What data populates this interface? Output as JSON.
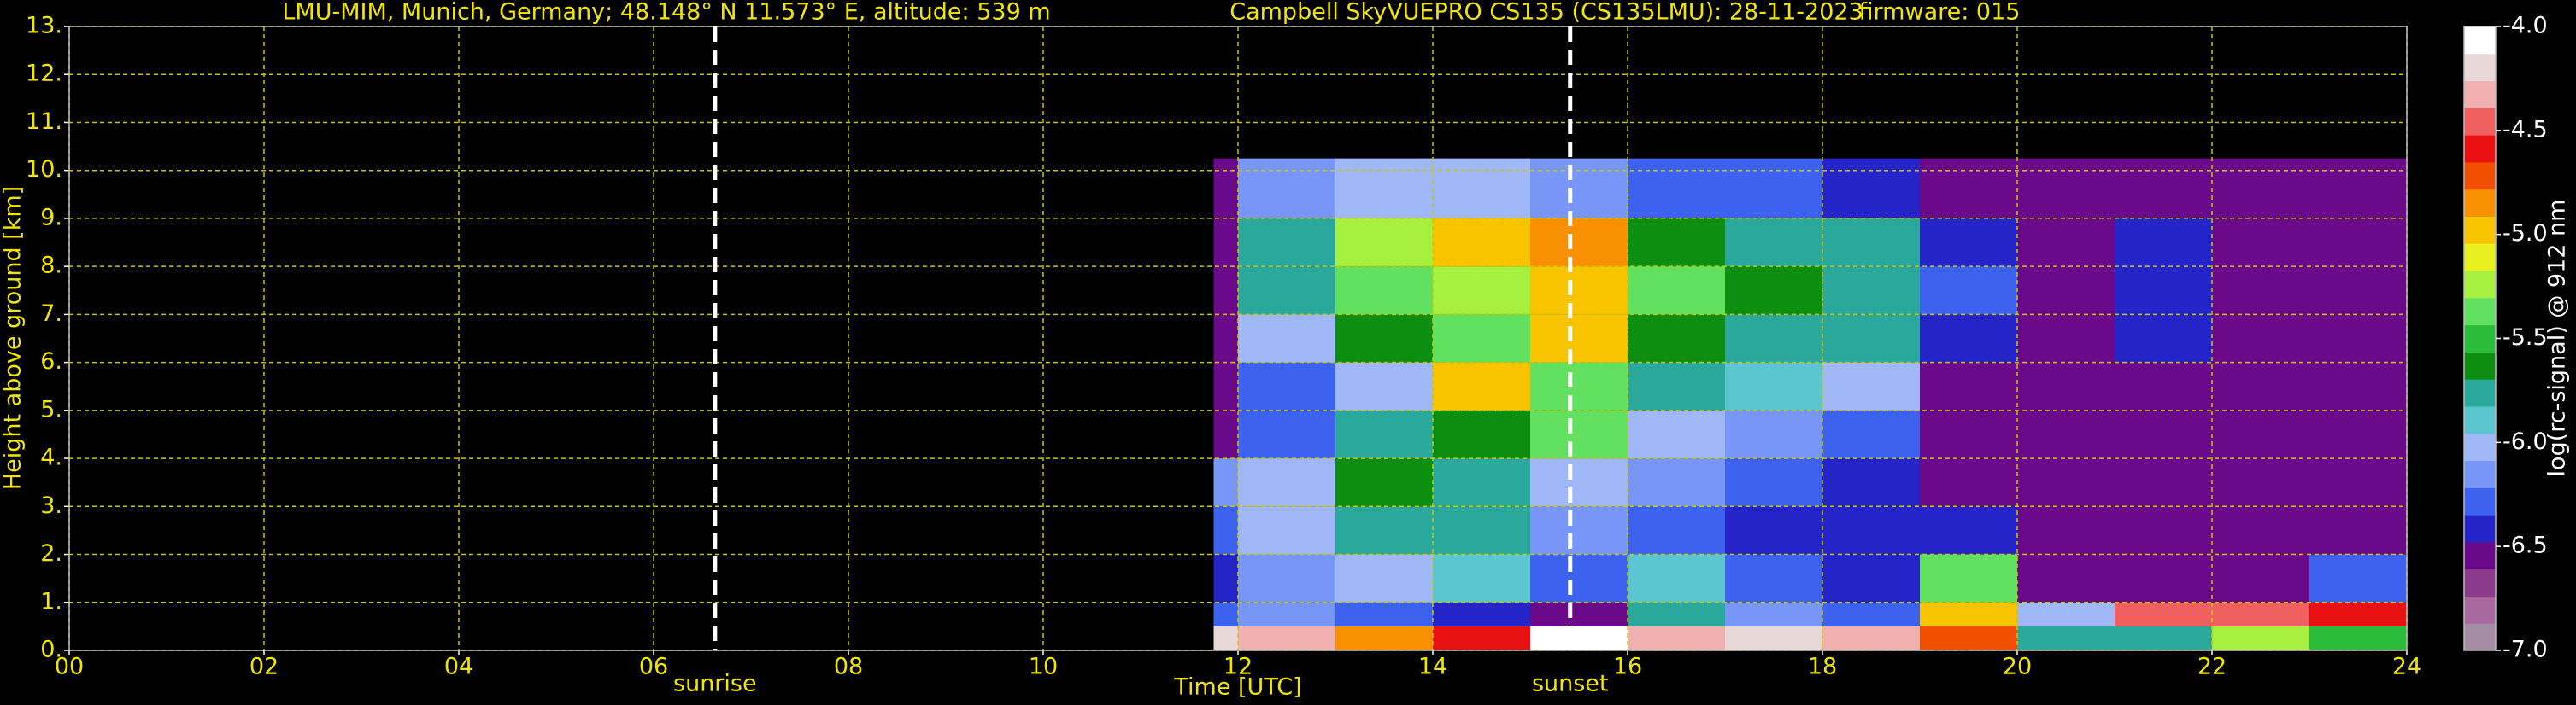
{
  "chart_data": {
    "type": "heatmap",
    "title": [
      "LMU-MIM, Munich, Germany; 48.148° N 11.573° E, altitude: 539 m",
      "Campbell SkyVUEPRO CS135 (CS135LMU): 28-11-2023",
      "firmware: 015"
    ],
    "x_label": "Time [UTC]",
    "y_label": "Height above ground [km]",
    "colorbar_label": "log(rc-signal) @ 912 nm",
    "xlim": [
      0,
      24
    ],
    "ylim": [
      0,
      13
    ],
    "xticks": [
      {
        "value": 0,
        "label": "00"
      },
      {
        "value": 2,
        "label": "02"
      },
      {
        "value": 4,
        "label": "04"
      },
      {
        "value": 6,
        "label": "06"
      },
      {
        "value": 8,
        "label": "08"
      },
      {
        "value": 10,
        "label": "10"
      },
      {
        "value": 12,
        "label": "12"
      },
      {
        "value": 14,
        "label": "14"
      },
      {
        "value": 16,
        "label": "16"
      },
      {
        "value": 18,
        "label": "18"
      },
      {
        "value": 20,
        "label": "20"
      },
      {
        "value": 22,
        "label": "22"
      },
      {
        "value": 24,
        "label": "24"
      }
    ],
    "yticks": [
      {
        "value": 0,
        "label": "0."
      },
      {
        "value": 1,
        "label": "1."
      },
      {
        "value": 2,
        "label": "2."
      },
      {
        "value": 3,
        "label": "3."
      },
      {
        "value": 4,
        "label": "4."
      },
      {
        "value": 5,
        "label": "5."
      },
      {
        "value": 6,
        "label": "6."
      },
      {
        "value": 7,
        "label": "7."
      },
      {
        "value": 8,
        "label": "8."
      },
      {
        "value": 9,
        "label": "9."
      },
      {
        "value": 10,
        "label": "10."
      },
      {
        "value": 11,
        "label": "11."
      },
      {
        "value": 12,
        "label": "12."
      },
      {
        "value": 13,
        "label": "13."
      }
    ],
    "clim": [
      -7,
      -4
    ],
    "cticks": [
      {
        "value": -4,
        "label": "-4.0"
      },
      {
        "value": -4.5,
        "label": "-4.5"
      },
      {
        "value": -5,
        "label": "-5.0"
      },
      {
        "value": -5.5,
        "label": "-5.5"
      },
      {
        "value": -6,
        "label": "-6.0"
      },
      {
        "value": -6.5,
        "label": "-6.5"
      },
      {
        "value": -7,
        "label": "-7.0"
      }
    ],
    "colormap": [
      "#a58ca5",
      "#a8689f",
      "#8c3a8c",
      "#6a0a8a",
      "#2424c8",
      "#3e62f0",
      "#7896f8",
      "#a0b8f8",
      "#5cc6d0",
      "#2aa89c",
      "#0e8e10",
      "#2cbc3c",
      "#62e060",
      "#a8f040",
      "#e8f020",
      "#f8c400",
      "#f89000",
      "#f05000",
      "#e81010",
      "#f06060",
      "#f0b0b0",
      "#e8d8d8",
      "#ffffff"
    ],
    "grid": true,
    "annotations": [
      {
        "text": "sunrise",
        "x": 6.63
      },
      {
        "text": "sunset",
        "x": 15.41
      }
    ],
    "x_edges": [
      11.75,
      12,
      13,
      14,
      15,
      16,
      17,
      18,
      19,
      20,
      21,
      22,
      23,
      24
    ],
    "y_edges": [
      0,
      0.5,
      1,
      2,
      3,
      4,
      5,
      6,
      7,
      8,
      9,
      10.25
    ],
    "values": [
      [
        -4.2,
        -6.3,
        -6.4,
        -6.3,
        -6.2,
        -6.5,
        -6.5,
        -6.5,
        -6.5,
        -6.5,
        -6.5
      ],
      [
        -4.3,
        -6.2,
        -6.2,
        -6.0,
        -6.0,
        -6.3,
        -6.3,
        -6.0,
        -5.8,
        -5.8,
        -6.2
      ],
      [
        -4.8,
        -6.3,
        -6.0,
        -5.8,
        -5.6,
        -5.8,
        -6.0,
        -5.6,
        -5.4,
        -5.2,
        -6.0
      ],
      [
        -4.6,
        -6.4,
        -5.9,
        -5.7,
        -5.8,
        -5.6,
        -5.0,
        -5.4,
        -5.2,
        -5.0,
        -6.0
      ],
      [
        -4.1,
        -6.5,
        -6.3,
        -6.2,
        -6.0,
        -5.4,
        -5.4,
        -5.0,
        -5.0,
        -4.9,
        -6.1
      ],
      [
        -4.3,
        -5.8,
        -5.9,
        -6.3,
        -6.2,
        -6.0,
        -5.8,
        -5.6,
        -5.4,
        -5.6,
        -6.3
      ],
      [
        -4.2,
        -6.2,
        -6.3,
        -6.4,
        -6.3,
        -6.1,
        -5.9,
        -5.7,
        -5.6,
        -5.7,
        -6.3
      ],
      [
        -4.3,
        -6.3,
        -6.4,
        -6.4,
        -6.4,
        -6.3,
        -6.0,
        -5.8,
        -5.7,
        -5.8,
        -6.4
      ],
      [
        -4.7,
        -5.0,
        -5.4,
        -6.4,
        -6.5,
        -6.5,
        -6.5,
        -6.4,
        -6.3,
        -6.4,
        -6.5
      ],
      [
        -5.8,
        -6.0,
        -6.5,
        -6.5,
        -6.5,
        -6.5,
        -6.5,
        -6.5,
        -6.5,
        -6.5,
        -6.5
      ],
      [
        -5.7,
        -4.5,
        -6.6,
        -6.6,
        -6.5,
        -6.5,
        -6.5,
        -6.4,
        -6.4,
        -6.4,
        -6.5
      ],
      [
        -5.3,
        -4.5,
        -6.5,
        -6.5,
        -6.5,
        -6.5,
        -6.5,
        -6.5,
        -6.5,
        -6.5,
        -6.5
      ],
      [
        -5.5,
        -4.6,
        -6.3,
        -6.5,
        -6.5,
        -6.5,
        -6.5,
        -6.5,
        -6.5,
        -6.5,
        -6.5
      ]
    ]
  }
}
